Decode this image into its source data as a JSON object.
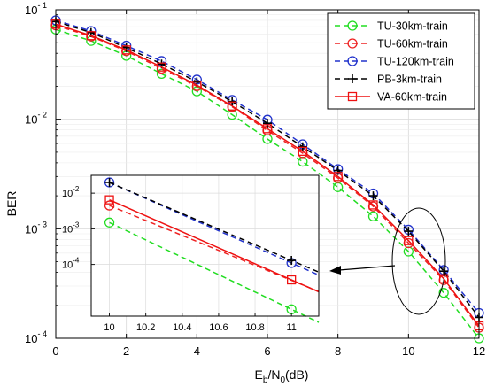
{
  "chart_data": [
    {
      "type": "line",
      "xlabel_main": "E",
      "xlabel_sub1": "b",
      "xlabel_mid": "/N",
      "xlabel_sub2": "0",
      "xlabel_tail": "(dB)",
      "ylabel": "BER",
      "xlim": [
        0,
        12
      ],
      "ylim": [
        0.0001,
        0.1
      ],
      "yscale": "log",
      "grid": true,
      "legend_position": "top-right",
      "x_ticks": [
        "0",
        "2",
        "4",
        "6",
        "8",
        "10",
        "12"
      ],
      "y_ticks": [
        {
          "base": "10",
          "exp": "- 1"
        },
        {
          "base": "10",
          "exp": "- 2"
        },
        {
          "base": "10",
          "exp": "- 3"
        },
        {
          "base": "10",
          "exp": "- 4"
        }
      ],
      "x": [
        0,
        1,
        2,
        3,
        4,
        5,
        6,
        7,
        8,
        9,
        10,
        11,
        12
      ],
      "series": [
        {
          "name": "TU-30km-train",
          "color": "#22dd22",
          "dash": "dashed",
          "marker": "circle",
          "values": [
            0.066,
            0.052,
            0.038,
            0.026,
            0.018,
            0.011,
            0.0066,
            0.0041,
            0.0024,
            0.0013,
            0.00062,
            0.00026,
            0.0001
          ]
        },
        {
          "name": "TU-60km-train",
          "color": "#ee2222",
          "dash": "dashed",
          "marker": "circle",
          "values": [
            0.072,
            0.057,
            0.042,
            0.029,
            0.02,
            0.013,
            0.0079,
            0.0049,
            0.0029,
            0.0016,
            0.00074,
            0.00034,
            0.000125
          ]
        },
        {
          "name": "TU-120km-train",
          "color": "#2233cc",
          "dash": "dashed",
          "marker": "circle",
          "values": [
            0.08,
            0.064,
            0.047,
            0.034,
            0.023,
            0.015,
            0.0099,
            0.0059,
            0.0035,
            0.0021,
            0.00098,
            0.00042,
            0.00017
          ]
        },
        {
          "name": "PB-3km-train",
          "color": "#000000",
          "dash": "dashed",
          "marker": "plus",
          "values": [
            0.078,
            0.062,
            0.045,
            0.032,
            0.022,
            0.0145,
            0.0092,
            0.0056,
            0.0034,
            0.002,
            0.00095,
            0.00041,
            0.000155
          ]
        },
        {
          "name": "VA-60km-train",
          "color": "#ee1111",
          "dash": "solid",
          "marker": "square",
          "values": [
            0.074,
            0.058,
            0.043,
            0.03,
            0.0205,
            0.0132,
            0.0082,
            0.0051,
            0.003,
            0.00165,
            0.00078,
            0.00035,
            0.00013
          ]
        }
      ]
    },
    {
      "type": "line",
      "xlim": [
        9.9,
        11.15
      ],
      "yscale": "log",
      "x_ticks": [
        "10",
        "10.2",
        "10.4",
        "10.6",
        "10.8",
        "11"
      ],
      "y_ticks": [
        {
          "base": "10",
          "exp": "-2"
        },
        {
          "base": "10",
          "exp": "-3"
        },
        {
          "base": "10",
          "exp": "-4"
        }
      ],
      "x": [
        10,
        11
      ],
      "series": [
        {
          "name": "TU-30km-train",
          "color": "#22dd22",
          "dash": "dashed",
          "marker": "circle",
          "values": [
            0.0015,
            5.5e-06
          ]
        },
        {
          "name": "TU-60km-train",
          "color": "#ee2222",
          "dash": "dashed",
          "marker": "circle",
          "values": [
            0.0045,
            3.6e-05
          ]
        },
        {
          "name": "TU-120km-train",
          "color": "#2233cc",
          "dash": "dashed",
          "marker": "circle",
          "values": [
            0.02,
            0.00011
          ]
        },
        {
          "name": "PB-3km-train",
          "color": "#000000",
          "dash": "dashed",
          "marker": "plus",
          "values": [
            0.02,
            0.00013
          ]
        },
        {
          "name": "VA-60km-train",
          "color": "#ee1111",
          "dash": "solid",
          "marker": "square",
          "values": [
            0.0065,
            3.7e-05
          ]
        }
      ]
    }
  ]
}
